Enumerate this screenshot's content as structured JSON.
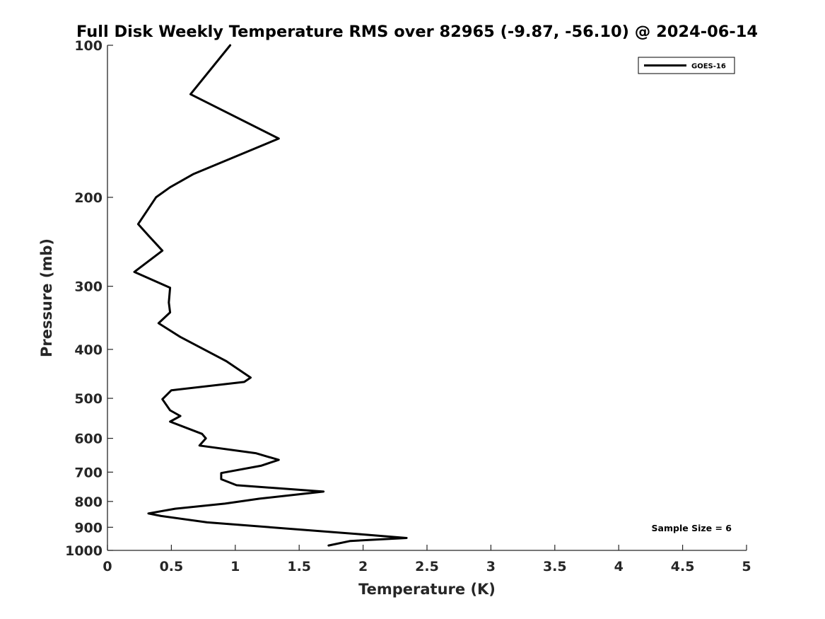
{
  "chart_data": {
    "type": "line",
    "title": "Full Disk Weekly Temperature RMS over 82965 (-9.87, -56.10) @ 2024-06-14",
    "xlabel": "Temperature (K)",
    "ylabel": "Pressure (mb)",
    "xlim": [
      0,
      5
    ],
    "ylim": [
      100,
      1000
    ],
    "y_scale": "log",
    "y_reversed": true,
    "grid": false,
    "legend_position": "top-right",
    "x_ticks": [
      "0",
      "0.5",
      "1",
      "1.5",
      "2",
      "2.5",
      "3",
      "3.5",
      "4",
      "4.5",
      "5"
    ],
    "y_ticks": [
      "100",
      "200",
      "300",
      "400",
      "500",
      "600",
      "700",
      "800",
      "900",
      "1000"
    ],
    "series": [
      {
        "name": "GOES-16",
        "color": "#000000",
        "points": [
          [
            0.96,
            100
          ],
          [
            0.65,
            125
          ],
          [
            1.34,
            153
          ],
          [
            0.67,
            180
          ],
          [
            0.49,
            191
          ],
          [
            0.38,
            200
          ],
          [
            0.24,
            226
          ],
          [
            0.32,
            238
          ],
          [
            0.43,
            255
          ],
          [
            0.21,
            281
          ],
          [
            0.49,
            302
          ],
          [
            0.48,
            323
          ],
          [
            0.49,
            338
          ],
          [
            0.4,
            355
          ],
          [
            0.57,
            378
          ],
          [
            0.93,
            422
          ],
          [
            1.12,
            455
          ],
          [
            1.07,
            464
          ],
          [
            0.5,
            482
          ],
          [
            0.43,
            502
          ],
          [
            0.49,
            528
          ],
          [
            0.57,
            542
          ],
          [
            0.49,
            556
          ],
          [
            0.74,
            588
          ],
          [
            0.77,
            600
          ],
          [
            0.72,
            620
          ],
          [
            1.16,
            642
          ],
          [
            1.34,
            662
          ],
          [
            1.2,
            680
          ],
          [
            0.89,
            703
          ],
          [
            0.89,
            723
          ],
          [
            1.01,
            743
          ],
          [
            1.69,
            765
          ],
          [
            1.19,
            790
          ],
          [
            0.92,
            808
          ],
          [
            0.53,
            827
          ],
          [
            0.32,
            845
          ],
          [
            0.42,
            855
          ],
          [
            0.78,
            880
          ],
          [
            2.0,
            930
          ],
          [
            2.34,
            945
          ],
          [
            1.9,
            958
          ],
          [
            1.73,
            978
          ]
        ]
      }
    ],
    "annotation": "Sample Size = 6"
  }
}
